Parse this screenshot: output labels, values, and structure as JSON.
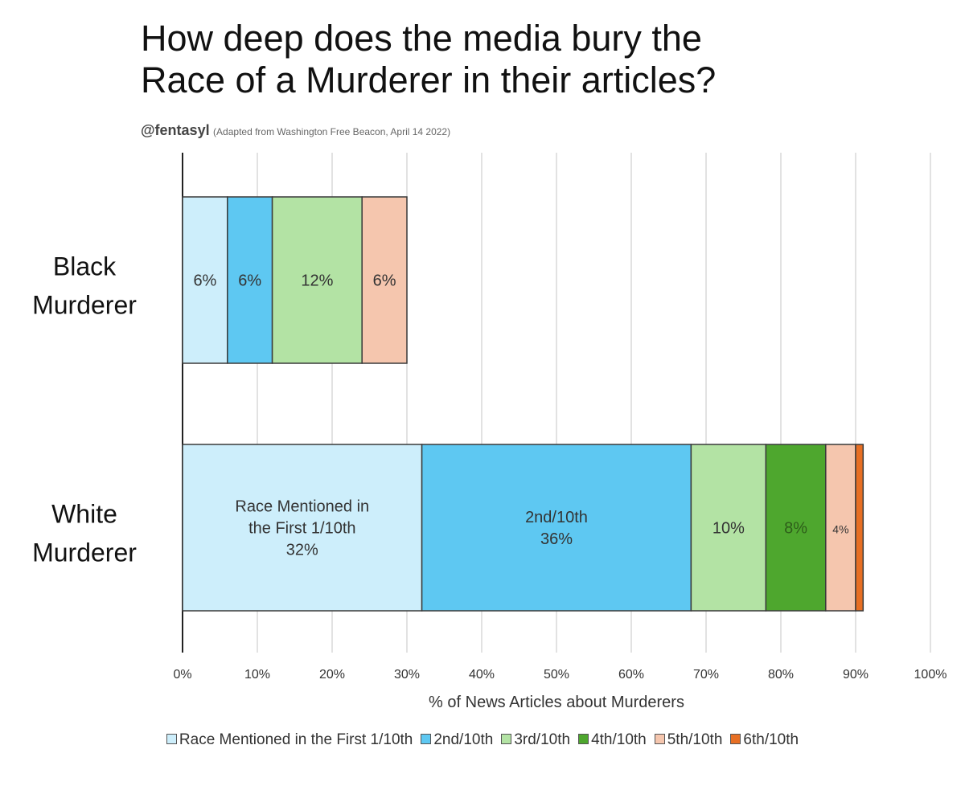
{
  "chart_data": {
    "type": "bar",
    "orientation": "horizontal",
    "stacked": true,
    "title": "How deep does the media bury the Race of a Murderer in their articles?",
    "title_lines": [
      "How deep does the media bury the",
      "Race of a Murderer in their articles?"
    ],
    "author": "@fentasyl",
    "source_note": "(Adapted from Washington Free Beacon, April 14 2022)",
    "xlabel": "% of News Articles about Murderers",
    "xlim": [
      0,
      100
    ],
    "xticks": [
      "0%",
      "10%",
      "20%",
      "30%",
      "40%",
      "50%",
      "60%",
      "70%",
      "80%",
      "90%",
      "100%"
    ],
    "grid": true,
    "legend_position": "bottom",
    "categories": [
      "Black Murderer",
      "White Murderer"
    ],
    "category_lines": [
      [
        "Black",
        "Murderer"
      ],
      [
        "White",
        "Murderer"
      ]
    ],
    "series": [
      {
        "name": "Race Mentioned in the First 1/10th",
        "color": "#cdeefb",
        "values": [
          6,
          32
        ],
        "labels": [
          [
            "6%"
          ],
          [
            "Race Mentioned in",
            "the First 1/10th",
            "32%"
          ]
        ]
      },
      {
        "name": "2nd/10th",
        "color": "#5ec8f2",
        "values": [
          6,
          36
        ],
        "labels": [
          [
            "6%"
          ],
          [
            "2nd/10th",
            "36%"
          ]
        ]
      },
      {
        "name": "3rd/10th",
        "color": "#b3e3a4",
        "values": [
          12,
          10
        ],
        "labels": [
          [
            "12%"
          ],
          [
            "10%"
          ]
        ]
      },
      {
        "name": "4th/10th",
        "color": "#4ea72e",
        "values": [
          0,
          8
        ],
        "labels": [
          [],
          [
            "8%"
          ]
        ]
      },
      {
        "name": "5th/10th",
        "color": "#f5c6ae",
        "values": [
          6,
          4
        ],
        "labels": [
          [
            "6%"
          ],
          [
            "4%"
          ]
        ]
      },
      {
        "name": "6th/10th",
        "color": "#e76f24",
        "values": [
          0,
          1
        ],
        "labels": [
          [],
          []
        ]
      }
    ]
  }
}
